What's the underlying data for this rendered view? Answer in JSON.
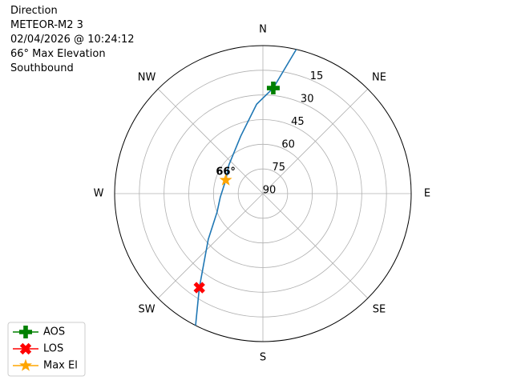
{
  "chart_data": {
    "type": "polar",
    "header_lines": [
      "Direction",
      "METEOR-M2 3",
      "02/04/2026 @ 10:24:12",
      "66° Max Elevation",
      "Southbound"
    ],
    "direction": "clockwise",
    "zero_location": "N",
    "rlim": [
      90,
      0
    ],
    "rticks": [
      90,
      75,
      60,
      45,
      30,
      15
    ],
    "thetaticks": [
      {
        "value": 0,
        "label": "N"
      },
      {
        "value": 45,
        "label": "NE"
      },
      {
        "value": 90,
        "label": "E"
      },
      {
        "value": 135,
        "label": "SE"
      },
      {
        "value": 180,
        "label": "S"
      },
      {
        "value": 225,
        "label": "SW"
      },
      {
        "value": 270,
        "label": "W"
      },
      {
        "value": 315,
        "label": "NW"
      }
    ],
    "grid": true,
    "legend_loc": "lower left",
    "series": [
      {
        "color": "#1f77b4",
        "marker": "none",
        "theta": [
          13,
          5.6,
          356,
          339,
          310,
          290,
          265,
          248,
          230,
          214,
          207
        ],
        "r": [
          0,
          25.5,
          35.5,
          52.5,
          63,
          66,
          64,
          60,
          46.7,
          21,
          0
        ]
      },
      {
        "name": "AOS",
        "color": "#008000",
        "marker": "plus",
        "theta": [
          5.6
        ],
        "r": [
          25.5
        ]
      },
      {
        "name": "LOS",
        "color": "#ff0000",
        "marker": "x",
        "theta": [
          214
        ],
        "r": [
          21
        ]
      },
      {
        "name": "Max El",
        "color": "#ffa500",
        "marker": "star",
        "theta": [
          290
        ],
        "r": [
          66
        ]
      }
    ],
    "annotations": [
      {
        "text": "66°",
        "theta": 290,
        "r": 66
      }
    ]
  }
}
